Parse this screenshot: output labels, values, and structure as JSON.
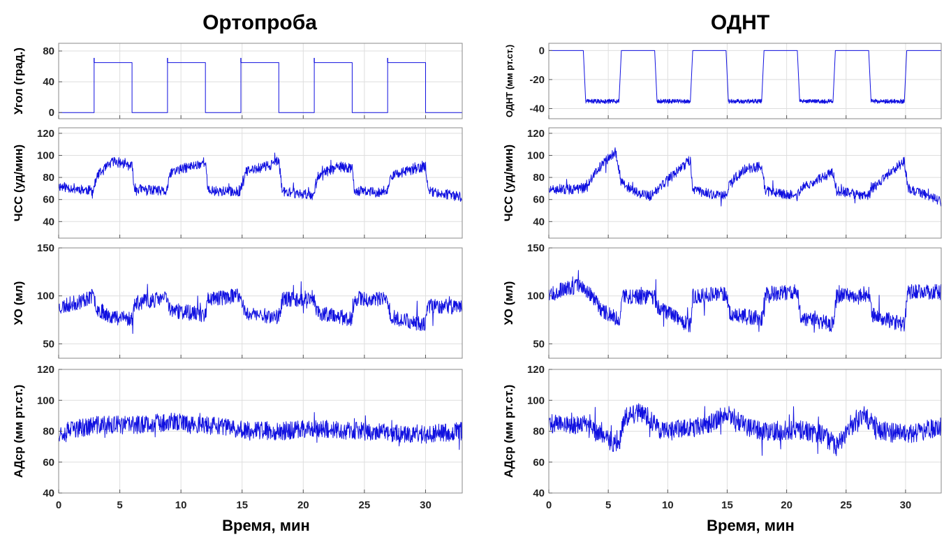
{
  "colors": {
    "series": "#1010e0",
    "grid": "#dedede",
    "frame": "#8a8a8a"
  },
  "chart_data": [
    {
      "type": "line",
      "title": "Ортопроба",
      "xlabel": "Время, мин",
      "xlim": [
        0,
        33
      ],
      "xticks": [
        0,
        5,
        10,
        15,
        20,
        25,
        30
      ],
      "grid": true,
      "panels": [
        {
          "ylabel": "Угол (град.)",
          "ylim": [
            -8,
            90
          ],
          "yticks": [
            0,
            40,
            80
          ],
          "series": [
            {
              "kind": "step",
              "x": [
                0,
                2.9,
                2.9,
                6.0,
                6.0,
                8.9,
                8.9,
                12.0,
                12.0,
                14.9,
                14.9,
                18.0,
                18.0,
                20.9,
                20.9,
                24.0,
                24.0,
                26.9,
                26.9,
                30.0,
                30.0,
                33
              ],
              "y": [
                0,
                0,
                65,
                65,
                0,
                0,
                65,
                65,
                0,
                0,
                65,
                65,
                0,
                0,
                65,
                65,
                0,
                0,
                65,
                65,
                0,
                0
              ]
            }
          ]
        },
        {
          "ylabel": "ЧСС (уд/мин)",
          "ylim": [
            25,
            125
          ],
          "yticks": [
            40,
            60,
            80,
            100,
            120
          ],
          "series": [
            {
              "kind": "noisy",
              "points": [
                [
                  0,
                  72
                ],
                [
                  2.8,
                  68
                ],
                [
                  3.2,
                  82
                ],
                [
                  4.5,
                  95
                ],
                [
                  6.0,
                  90
                ],
                [
                  6.2,
                  70
                ],
                [
                  8.8,
                  67
                ],
                [
                  9.2,
                  85
                ],
                [
                  11.5,
                  92
                ],
                [
                  12.0,
                  95
                ],
                [
                  12.2,
                  68
                ],
                [
                  14.8,
                  67
                ],
                [
                  15.3,
                  85
                ],
                [
                  17.5,
                  92
                ],
                [
                  18.0,
                  95
                ],
                [
                  18.3,
                  67
                ],
                [
                  20.8,
                  64
                ],
                [
                  21.2,
                  82
                ],
                [
                  23.0,
                  90
                ],
                [
                  24.0,
                  88
                ],
                [
                  24.2,
                  68
                ],
                [
                  26.8,
                  66
                ],
                [
                  27.2,
                  82
                ],
                [
                  30.0,
                  90
                ],
                [
                  30.2,
                  68
                ],
                [
                  33,
                  62
                ]
              ],
              "noise": 4.5,
              "seed": 11
            }
          ]
        },
        {
          "ylabel": "УО (мл)",
          "ylim": [
            35,
            150
          ],
          "yticks": [
            50,
            100,
            150
          ],
          "series": [
            {
              "kind": "noisy",
              "points": [
                [
                  0,
                  88
                ],
                [
                  1.5,
                  93
                ],
                [
                  2.8,
                  100
                ],
                [
                  3.2,
                  86
                ],
                [
                  4.5,
                  78
                ],
                [
                  6.0,
                  76
                ],
                [
                  6.2,
                  92
                ],
                [
                  8.8,
                  98
                ],
                [
                  9.2,
                  85
                ],
                [
                  12.0,
                  80
                ],
                [
                  12.2,
                  97
                ],
                [
                  14.8,
                  100
                ],
                [
                  15.3,
                  82
                ],
                [
                  18.0,
                  78
                ],
                [
                  18.3,
                  96
                ],
                [
                  20.8,
                  98
                ],
                [
                  21.2,
                  82
                ],
                [
                  24.0,
                  76
                ],
                [
                  24.2,
                  97
                ],
                [
                  26.8,
                  96
                ],
                [
                  27.2,
                  78
                ],
                [
                  30.0,
                  70
                ],
                [
                  30.2,
                  90
                ],
                [
                  33,
                  88
                ]
              ],
              "noise": 8,
              "seed": 23
            }
          ]
        },
        {
          "ylabel": "АДср (мм рт.ст.)",
          "ylim": [
            40,
            120
          ],
          "yticks": [
            40,
            60,
            80,
            100,
            120
          ],
          "series": [
            {
              "kind": "noisy",
              "points": [
                [
                  0,
                  79
                ],
                [
                  3,
                  84
                ],
                [
                  6,
                  84
                ],
                [
                  9,
                  86
                ],
                [
                  12,
                  84
                ],
                [
                  15,
                  81
                ],
                [
                  18,
                  80
                ],
                [
                  21,
                  82
                ],
                [
                  24,
                  80
                ],
                [
                  27,
                  79
                ],
                [
                  30,
                  78
                ],
                [
                  33,
                  80
                ]
              ],
              "noise": 6,
              "seed": 37
            }
          ]
        }
      ]
    },
    {
      "type": "line",
      "title": "ОДНТ",
      "xlabel": "Время, мин",
      "xlim": [
        0,
        33
      ],
      "xticks": [
        0,
        5,
        10,
        15,
        20,
        25,
        30
      ],
      "grid": true,
      "panels": [
        {
          "ylabel": "ОДНТ (мм рт.ст.)",
          "ylim": [
            -47,
            5
          ],
          "yticks": [
            0,
            -20,
            -40
          ],
          "series": [
            {
              "kind": "step",
              "x": [
                0,
                2.9,
                3.1,
                5.9,
                6.1,
                8.9,
                9.1,
                11.9,
                12.1,
                14.9,
                15.1,
                17.9,
                18.1,
                20.9,
                21.1,
                23.9,
                24.1,
                26.9,
                27.1,
                29.9,
                30.1,
                33
              ],
              "y": [
                0,
                0,
                -35,
                -35,
                0,
                0,
                -35,
                -35,
                0,
                0,
                -35,
                -35,
                0,
                0,
                -35,
                -35,
                0,
                0,
                -35,
                -35,
                0,
                0
              ],
              "band": 3
            }
          ]
        },
        {
          "ylabel": "ЧСС (уд/мин)",
          "ylim": [
            25,
            125
          ],
          "yticks": [
            40,
            60,
            80,
            100,
            120
          ],
          "series": [
            {
              "kind": "noisy",
              "points": [
                [
                  0,
                  68
                ],
                [
                  2.9,
                  70
                ],
                [
                  4.5,
                  92
                ],
                [
                  5.6,
                  104
                ],
                [
                  6.1,
                  75
                ],
                [
                  7.5,
                  66
                ],
                [
                  8.5,
                  63
                ],
                [
                  9.2,
                  70
                ],
                [
                  11.9,
                  96
                ],
                [
                  12.1,
                  68
                ],
                [
                  14.9,
                  63
                ],
                [
                  15.2,
                  75
                ],
                [
                  16.5,
                  88
                ],
                [
                  17.9,
                  90
                ],
                [
                  18.2,
                  68
                ],
                [
                  20.9,
                  63
                ],
                [
                  21.2,
                  70
                ],
                [
                  23.9,
                  85
                ],
                [
                  24.2,
                  68
                ],
                [
                  26.9,
                  63
                ],
                [
                  27.2,
                  70
                ],
                [
                  29.9,
                  95
                ],
                [
                  30.2,
                  70
                ],
                [
                  33,
                  58
                ]
              ],
              "noise": 4.5,
              "seed": 51
            }
          ]
        },
        {
          "ylabel": "УО (мл)",
          "ylim": [
            35,
            150
          ],
          "yticks": [
            50,
            100,
            150
          ],
          "series": [
            {
              "kind": "noisy",
              "points": [
                [
                  0,
                  103
                ],
                [
                  2.5,
                  110
                ],
                [
                  3.0,
                  108
                ],
                [
                  4.5,
                  85
                ],
                [
                  6.0,
                  75
                ],
                [
                  6.2,
                  100
                ],
                [
                  8.9,
                  98
                ],
                [
                  9.2,
                  88
                ],
                [
                  11.9,
                  68
                ],
                [
                  12.1,
                  100
                ],
                [
                  14.9,
                  103
                ],
                [
                  15.2,
                  82
                ],
                [
                  17.9,
                  76
                ],
                [
                  18.2,
                  102
                ],
                [
                  20.9,
                  104
                ],
                [
                  21.2,
                  78
                ],
                [
                  23.9,
                  70
                ],
                [
                  24.2,
                  100
                ],
                [
                  26.9,
                  102
                ],
                [
                  27.2,
                  80
                ],
                [
                  29.9,
                  70
                ],
                [
                  30.2,
                  104
                ],
                [
                  33,
                  104
                ]
              ],
              "noise": 8,
              "seed": 67
            }
          ]
        },
        {
          "ylabel": "АДср (мм рт.ст.)",
          "ylim": [
            40,
            120
          ],
          "yticks": [
            40,
            60,
            80,
            100,
            120
          ],
          "series": [
            {
              "kind": "noisy",
              "points": [
                [
                  0,
                  85
                ],
                [
                  2.9,
                  84
                ],
                [
                  4.5,
                  78
                ],
                [
                  5.8,
                  70
                ],
                [
                  6.5,
                  90
                ],
                [
                  8,
                  92
                ],
                [
                  9.5,
                  80
                ],
                [
                  12,
                  82
                ],
                [
                  13.5,
                  85
                ],
                [
                  15,
                  92
                ],
                [
                  16.5,
                  84
                ],
                [
                  18,
                  80
                ],
                [
                  21,
                  81
                ],
                [
                  23,
                  78
                ],
                [
                  24.2,
                  70
                ],
                [
                  25.5,
                  82
                ],
                [
                  26.5,
                  90
                ],
                [
                  28,
                  80
                ],
                [
                  30,
                  78
                ],
                [
                  33,
                  83
                ]
              ],
              "noise": 6.5,
              "seed": 89
            }
          ]
        }
      ]
    }
  ]
}
